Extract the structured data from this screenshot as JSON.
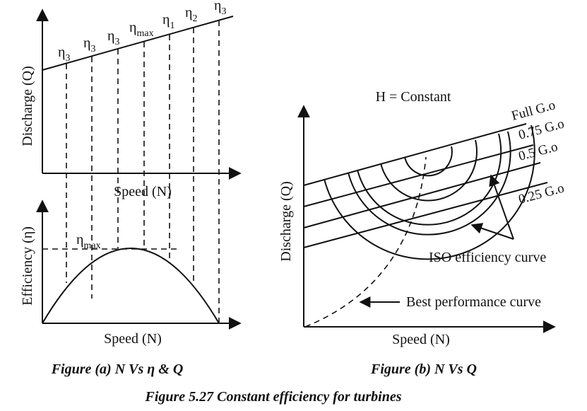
{
  "figure_a": {
    "top": {
      "ylabel": "Discharge (Q)",
      "xlabel": "Speed (N)",
      "eta_labels": [
        {
          "base": "η",
          "sub": "3"
        },
        {
          "base": "η",
          "sub": "3"
        },
        {
          "base": "η",
          "sub": "3"
        },
        {
          "base": "η",
          "sub": "max"
        },
        {
          "base": "η",
          "sub": "1"
        },
        {
          "base": "η",
          "sub": "2"
        },
        {
          "base": "η",
          "sub": "3"
        }
      ]
    },
    "bottom": {
      "ylabel": "Efficiency (η)",
      "xlabel": "Speed (N)",
      "peak_label": {
        "base": "η",
        "sub": "max"
      }
    },
    "caption": "Figure (a) N Vs η & Q"
  },
  "figure_b": {
    "header": "H = Constant",
    "ylabel": "Discharge (Q)",
    "xlabel": "Speed (N)",
    "gate_lines": [
      "Full G.o",
      "0.75 G.o",
      "0.5 G.o",
      "0.25 G.o"
    ],
    "iso_label": "ISO efficiency curve",
    "best_label": "Best performance curve",
    "caption": "Figure (b) N Vs Q"
  },
  "main_caption": "Figure 5.27 Constant efficiency for turbines"
}
